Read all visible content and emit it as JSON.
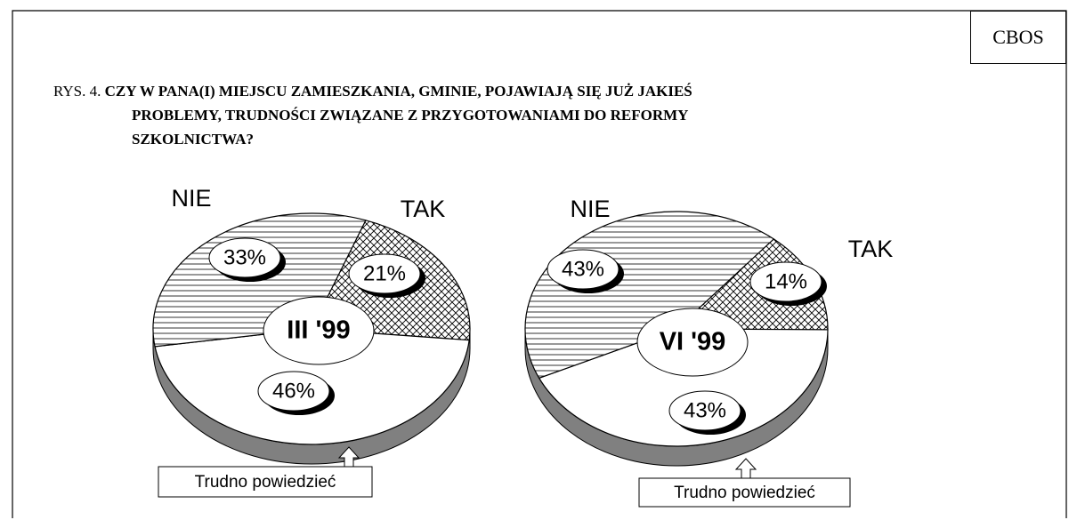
{
  "source": "CBOS",
  "figure_label": "RYS. 4.",
  "title": "CZY W PANA(I) MIEJSCU ZAMIESZKANIA, GMINIE, POJAWIAJĄ SIĘ JUŻ JAKIEŚ PROBLEMY, TRUDNOŚCI ZWIĄZANE Z PRZYGOTOWANIAMI DO REFORMY SZKOLNICTWA?",
  "chart_data": [
    {
      "type": "pie",
      "center_label": "III '99",
      "categories": [
        "NIE",
        "TAK",
        "Trudno powiedzieć"
      ],
      "values": [
        33,
        21,
        46
      ],
      "value_labels": [
        "33%",
        "21%",
        "46%"
      ]
    },
    {
      "type": "pie",
      "center_label": "VI '99",
      "categories": [
        "NIE",
        "TAK",
        "Trudno powiedzieć"
      ],
      "values": [
        43,
        14,
        43
      ],
      "value_labels": [
        "43%",
        "14%",
        "43%"
      ]
    }
  ]
}
